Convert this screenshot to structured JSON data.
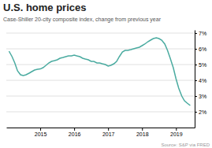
{
  "chart_data": {
    "type": "line",
    "title": "U.S. home prices",
    "subtitle": "Case-Shiller 20-city composite index, change from previous year",
    "source": "Source: S&P via FRED",
    "color": "#4aaba0",
    "grid": true,
    "xlim": [
      2014.0,
      2019.55
    ],
    "xticks": [
      2015,
      2016,
      2017,
      2018,
      2019
    ],
    "ylim": [
      1,
      7.2
    ],
    "yticks": [
      {
        "value": 2,
        "label": "2%"
      },
      {
        "value": 3,
        "label": "3%"
      },
      {
        "value": 4,
        "label": "4%"
      },
      {
        "value": 5,
        "label": "5%"
      },
      {
        "value": 6,
        "label": "6%"
      },
      {
        "value": 7,
        "label": "7%"
      }
    ],
    "x": [
      2014.08,
      2014.17,
      2014.25,
      2014.33,
      2014.42,
      2014.5,
      2014.58,
      2014.67,
      2014.75,
      2014.83,
      2014.92,
      2015.0,
      2015.08,
      2015.17,
      2015.25,
      2015.33,
      2015.42,
      2015.5,
      2015.58,
      2015.67,
      2015.75,
      2015.83,
      2015.92,
      2016.0,
      2016.08,
      2016.17,
      2016.25,
      2016.33,
      2016.42,
      2016.5,
      2016.58,
      2016.67,
      2016.75,
      2016.83,
      2016.92,
      2017.0,
      2017.08,
      2017.17,
      2017.25,
      2017.33,
      2017.42,
      2017.5,
      2017.58,
      2017.67,
      2017.75,
      2017.83,
      2017.92,
      2018.0,
      2018.08,
      2018.17,
      2018.25,
      2018.33,
      2018.42,
      2018.5,
      2018.58,
      2018.67,
      2018.75,
      2018.83,
      2018.92,
      2019.0,
      2019.08,
      2019.17,
      2019.25,
      2019.33,
      2019.42
    ],
    "values": [
      5.85,
      5.5,
      5.1,
      4.6,
      4.35,
      4.3,
      4.35,
      4.45,
      4.55,
      4.65,
      4.7,
      4.72,
      4.8,
      4.95,
      5.1,
      5.2,
      5.25,
      5.3,
      5.4,
      5.45,
      5.5,
      5.55,
      5.55,
      5.6,
      5.55,
      5.5,
      5.4,
      5.35,
      5.3,
      5.2,
      5.2,
      5.1,
      5.1,
      5.05,
      5.0,
      4.9,
      4.95,
      5.05,
      5.2,
      5.5,
      5.8,
      5.9,
      5.9,
      5.95,
      6.0,
      6.05,
      6.1,
      6.2,
      6.3,
      6.45,
      6.55,
      6.65,
      6.7,
      6.65,
      6.55,
      6.3,
      5.9,
      5.4,
      4.8,
      4.1,
      3.5,
      3.0,
      2.7,
      2.55,
      2.4
    ]
  }
}
